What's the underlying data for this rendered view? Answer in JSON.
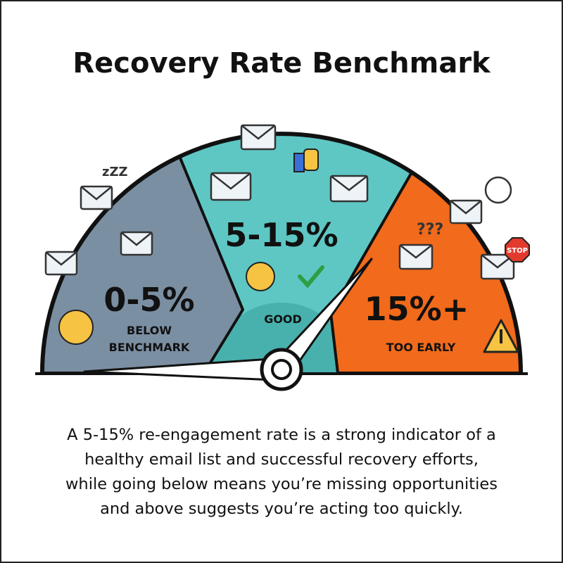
{
  "header": {
    "title": "Recovery Rate Benchmark"
  },
  "gauge": {
    "segments": [
      {
        "range": "0-5%",
        "label_lines": [
          "BELOW",
          "BENCHMARK"
        ]
      },
      {
        "range": "5-15%",
        "label_lines": [
          "GOOD"
        ]
      },
      {
        "range": "15%+",
        "label_lines": [
          "TOO EARLY"
        ]
      }
    ],
    "icons": {
      "sleep": "zZZ",
      "question": "???",
      "stop": "STOP"
    }
  },
  "caption": {
    "lines": [
      "A 5-15% re-engagement rate is a strong indicator of a",
      "healthy email list and successful recovery efforts,",
      "while going below means you’re missing opportunities",
      "and above suggests you’re acting too quickly."
    ]
  }
}
